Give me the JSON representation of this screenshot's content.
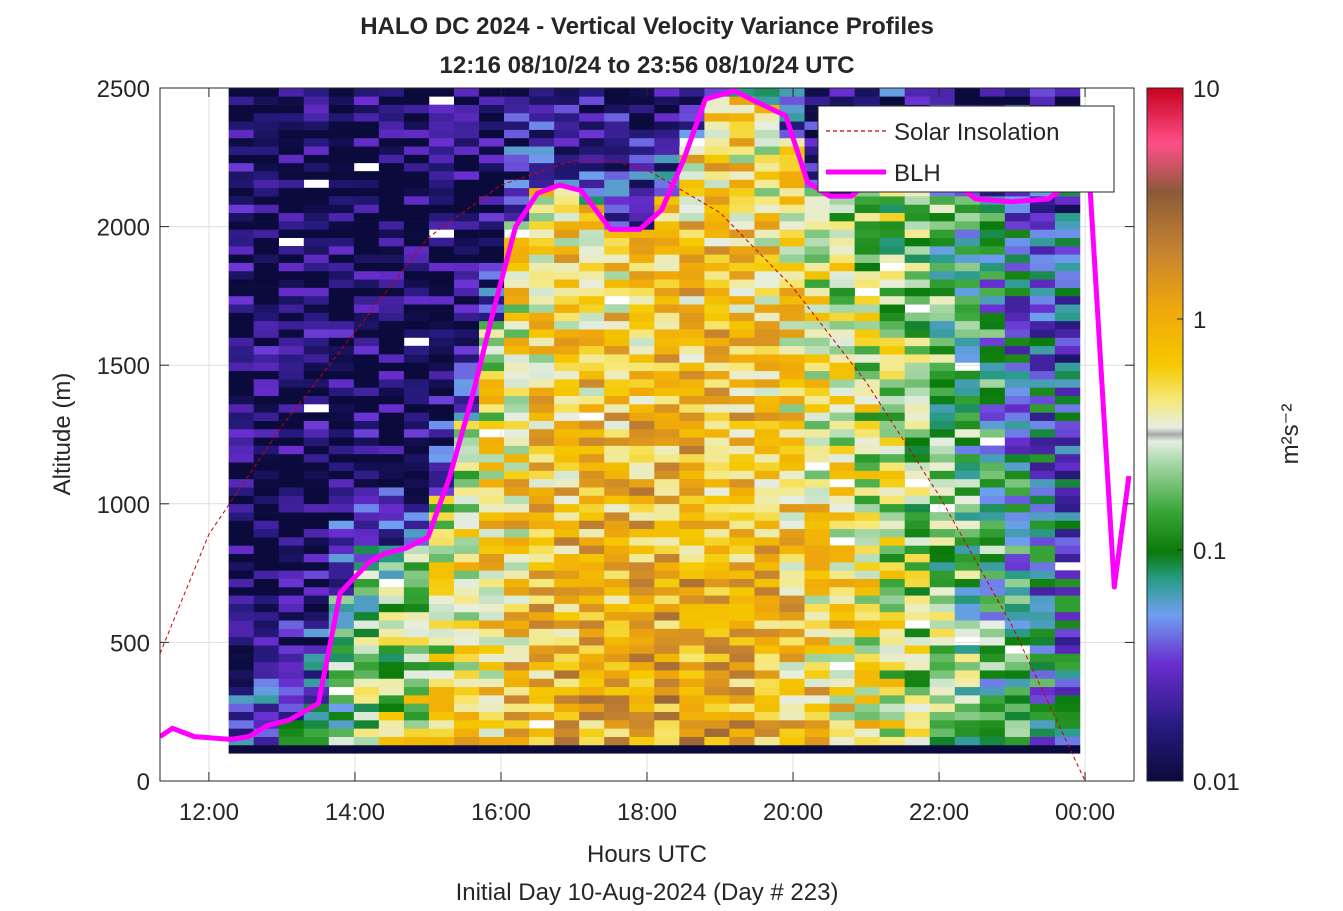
{
  "chart_data": {
    "type": "heatmap",
    "title_lines": [
      "HALO DC 2024 - Vertical Velocity Variance Profiles",
      "12:16 08/10/24 to 23:56 08/10/24  UTC"
    ],
    "xlabel": "Hours UTC",
    "xlabel2": "Initial Day 10-Aug-2024 (Day # 223)",
    "ylabel": "Altitude (m)",
    "xlim_hours": [
      11.33,
      24.67
    ],
    "ylim": [
      0,
      2500
    ],
    "x_ticks": [
      {
        "value": 12,
        "label": "12:00"
      },
      {
        "value": 14,
        "label": "14:00"
      },
      {
        "value": 16,
        "label": "16:00"
      },
      {
        "value": 18,
        "label": "18:00"
      },
      {
        "value": 20,
        "label": "20:00"
      },
      {
        "value": 22,
        "label": "22:00"
      },
      {
        "value": 24,
        "label": "00:00"
      }
    ],
    "y_ticks": [
      {
        "value": 0,
        "label": "0"
      },
      {
        "value": 500,
        "label": "500"
      },
      {
        "value": 1000,
        "label": "1000"
      },
      {
        "value": 1500,
        "label": "1500"
      },
      {
        "value": 2000,
        "label": "2000"
      },
      {
        "value": 2500,
        "label": "2500"
      }
    ],
    "grid": true,
    "legend_position": "top-right",
    "heatmap": {
      "time_start_hours": 12.27,
      "time_end_hours": 23.93,
      "columns": 34,
      "altitude_min": 100,
      "altitude_max": 2500,
      "row_height_m": 30,
      "note_values": "variance estimates in m^2 s^-2, log-scaled"
    },
    "colorbar": {
      "label": "m²s⁻²",
      "scale": "log",
      "range": [
        0.01,
        10
      ],
      "ticks": [
        {
          "value": 0.01,
          "label": "0.01"
        },
        {
          "value": 0.1,
          "label": "0.1"
        },
        {
          "value": 1,
          "label": "1"
        },
        {
          "value": 10,
          "label": "10"
        }
      ]
    },
    "series": [
      {
        "name": "Solar Insolation",
        "style": "dashed",
        "color": "#cc0000",
        "x": [
          11.33,
          12.0,
          13.0,
          14.0,
          15.0,
          16.0,
          17.0,
          17.5,
          18.0,
          19.0,
          20.0,
          21.0,
          22.0,
          23.0,
          24.0,
          24.67
        ],
        "y": [
          460,
          890,
          1280,
          1620,
          1960,
          2150,
          2240,
          2240,
          2205,
          2050,
          1780,
          1440,
          1030,
          560,
          0,
          0
        ]
      },
      {
        "name": "BLH",
        "style": "solid",
        "color": "#ff00ff",
        "x": [
          11.33,
          11.5,
          11.8,
          12.3,
          12.55,
          12.8,
          13.1,
          13.5,
          13.8,
          14.2,
          14.4,
          14.7,
          15.0,
          15.3,
          15.6,
          15.9,
          16.2,
          16.5,
          16.8,
          17.1,
          17.5,
          17.9,
          18.2,
          18.5,
          18.8,
          19.2,
          19.5,
          19.9,
          20.2,
          20.5,
          20.8,
          21.2,
          21.5,
          21.8,
          22.0,
          22.5,
          23.0,
          23.5,
          23.9,
          24.05,
          24.4,
          24.6
        ],
        "y": [
          160,
          190,
          160,
          150,
          160,
          200,
          220,
          280,
          680,
          790,
          820,
          840,
          880,
          1100,
          1380,
          1700,
          2000,
          2120,
          2150,
          2130,
          1990,
          1990,
          2060,
          2240,
          2460,
          2490,
          2450,
          2400,
          2160,
          2110,
          2110,
          2200,
          2250,
          2260,
          2200,
          2100,
          2090,
          2100,
          2180,
          2220,
          700,
          1100
        ]
      }
    ]
  }
}
